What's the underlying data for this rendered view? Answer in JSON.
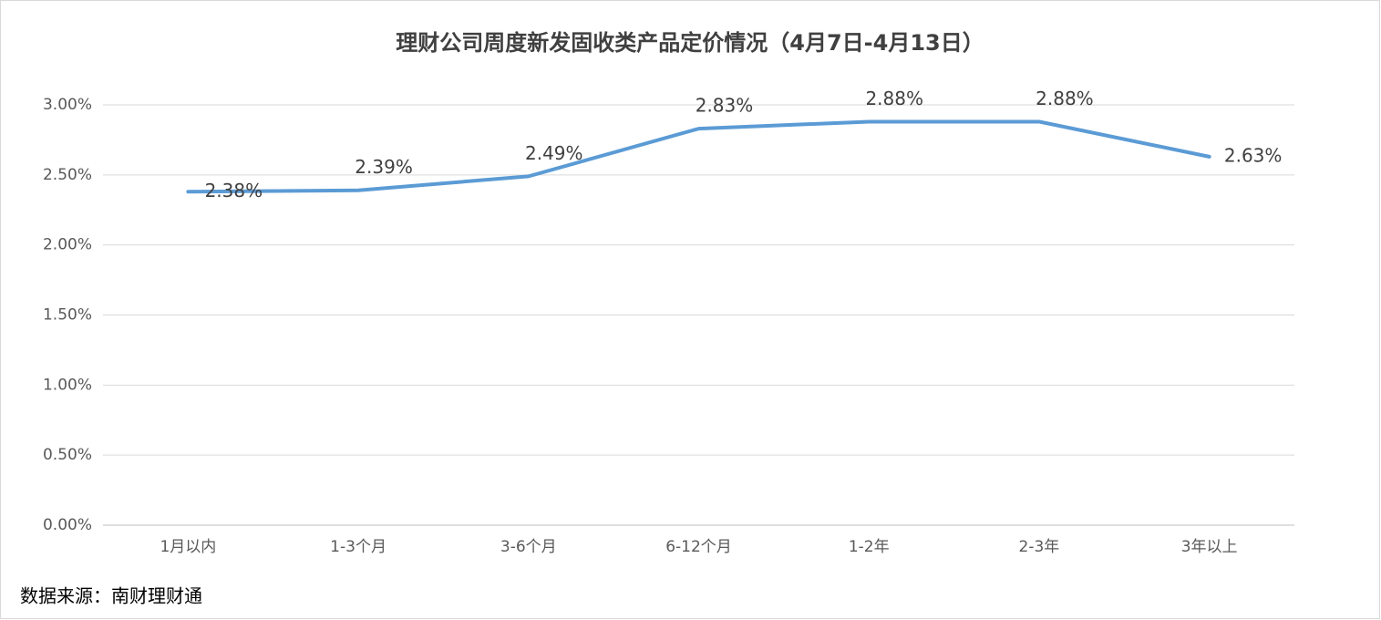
{
  "chart_data": {
    "type": "line",
    "title": "理财公司周度新发固收类产品定价情况（4月7日-4月13日）",
    "categories": [
      "1月以内",
      "1-3个月",
      "3-6个月",
      "6-12个月",
      "1-2年",
      "2-3年",
      "3年以上"
    ],
    "values": [
      2.38,
      2.39,
      2.49,
      2.83,
      2.88,
      2.88,
      2.63
    ],
    "value_labels": [
      "2.38%",
      "2.39%",
      "2.49%",
      "2.83%",
      "2.88%",
      "2.88%",
      "2.63%"
    ],
    "color": "#5b9bd5",
    "ylim": [
      0,
      3
    ],
    "yticks": [
      {
        "value": 0,
        "label": "0.00%"
      },
      {
        "value": 0.5,
        "label": "0.50%"
      },
      {
        "value": 1,
        "label": "1.00%"
      },
      {
        "value": 1.5,
        "label": "1.50%"
      },
      {
        "value": 2,
        "label": "2.00%"
      },
      {
        "value": 2.5,
        "label": "2.50%"
      },
      {
        "value": 3,
        "label": "3.00%"
      }
    ],
    "grid": true,
    "source": "数据来源：南财理财通"
  }
}
